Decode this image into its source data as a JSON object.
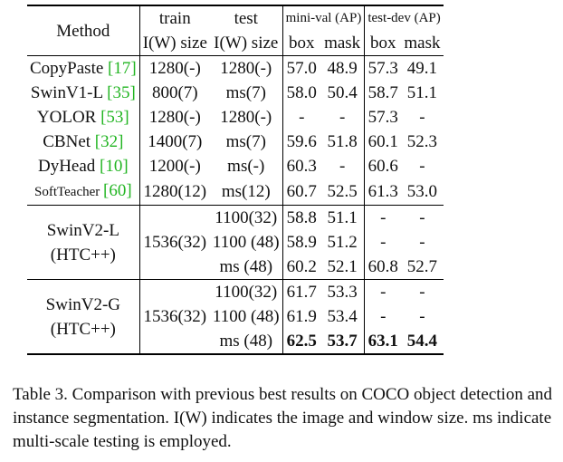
{
  "header": {
    "method": "Method",
    "train_top": "train",
    "train_bottom": "I(W) size",
    "test_top": "test",
    "test_bottom": "I(W) size",
    "miniv": "mini-val (AP)",
    "testdev": "test-dev (AP)",
    "box": "box",
    "mask": "mask"
  },
  "rows": [
    {
      "name": "CopyPaste ",
      "cite": "[17]",
      "train": "1280(-)",
      "test": "1280(-)",
      "mv_box": "57.0",
      "mv_mask": "48.9",
      "td_box": "57.3",
      "td_mask": "49.1"
    },
    {
      "name": "SwinV1-L ",
      "cite": "[35]",
      "train": "800(7)",
      "test": "ms(7)",
      "mv_box": "58.0",
      "mv_mask": "50.4",
      "td_box": "58.7",
      "td_mask": "51.1"
    },
    {
      "name": "YOLOR ",
      "cite": "[53]",
      "train": "1280(-)",
      "test": "1280(-)",
      "mv_box": "-",
      "mv_mask": "-",
      "td_box": "57.3",
      "td_mask": "-"
    },
    {
      "name": "CBNet ",
      "cite": "[32]",
      "train": "1400(7)",
      "test": "ms(7)",
      "mv_box": "59.6",
      "mv_mask": "51.8",
      "td_box": "60.1",
      "td_mask": "52.3"
    },
    {
      "name": "DyHead ",
      "cite": "[10]",
      "train": "1200(-)",
      "test": "ms(-)",
      "mv_box": "60.3",
      "mv_mask": "-",
      "td_box": "60.6",
      "td_mask": "-"
    },
    {
      "name": "SoftTeacher ",
      "cite": "[60]",
      "train": "1280(12)",
      "test": "ms(12)",
      "mv_box": "60.7",
      "mv_mask": "52.5",
      "td_box": "61.3",
      "td_mask": "53.0"
    }
  ],
  "groups": [
    {
      "name1": "SwinV2-L",
      "name2": "(HTC++)",
      "train": "1536(32)",
      "sub": [
        {
          "test": "1100(32)",
          "mv_box": "58.8",
          "mv_mask": "51.1",
          "td_box": "-",
          "td_mask": "-"
        },
        {
          "test": "1100 (48)",
          "mv_box": "58.9",
          "mv_mask": "51.2",
          "td_box": "-",
          "td_mask": "-"
        },
        {
          "test": "ms (48)",
          "mv_box": "60.2",
          "mv_mask": "52.1",
          "td_box": "60.8",
          "td_mask": "52.7"
        }
      ]
    },
    {
      "name1": "SwinV2-G",
      "name2": "(HTC++)",
      "train": "1536(32)",
      "sub": [
        {
          "test": "1100(32)",
          "mv_box": "61.7",
          "mv_mask": "53.3",
          "td_box": "-",
          "td_mask": "-"
        },
        {
          "test": "1100 (48)",
          "mv_box": "61.9",
          "mv_mask": "53.4",
          "td_box": "-",
          "td_mask": "-"
        },
        {
          "test": "ms (48)",
          "mv_box": "62.5",
          "mv_mask": "53.7",
          "td_box": "63.1",
          "td_mask": "54.4"
        }
      ]
    }
  ],
  "caption": "Table 3.  Comparison with previous best results on COCO object detection and instance segmentation. I(W) indicates the image and window size. ms indicate multi-scale testing is employed."
}
